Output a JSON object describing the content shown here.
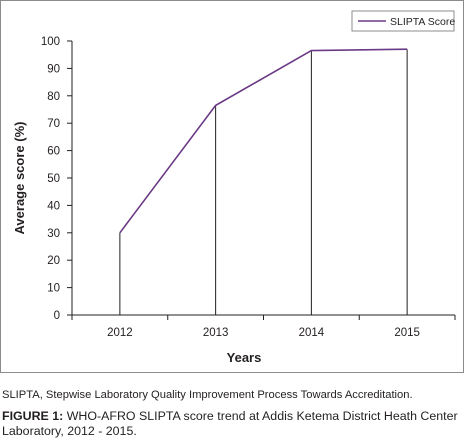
{
  "chart_data": {
    "type": "line",
    "title": "",
    "xlabel": "Years",
    "ylabel": "Average score (%)",
    "categories": [
      "2012",
      "2013",
      "2014",
      "2015"
    ],
    "series": [
      {
        "name": "SLIPTA Score",
        "values": [
          30,
          76.5,
          96.5,
          97
        ]
      }
    ],
    "ylim": [
      0,
      100
    ],
    "yticks": [
      0,
      10,
      20,
      30,
      40,
      50,
      60,
      70,
      80,
      90,
      100
    ],
    "drop_lines": true,
    "grid": false,
    "legend_position": "top-right",
    "line_color": "#6b3a86"
  },
  "captions": {
    "note": "SLIPTA, Stepwise Laboratory Quality Improvement Process Towards Accreditation.",
    "figure_label": "FIGURE 1:",
    "figure_text": " WHO-AFRO SLIPTA score trend at Addis Ketema District Heath Center Laboratory, 2012 - 2015."
  }
}
